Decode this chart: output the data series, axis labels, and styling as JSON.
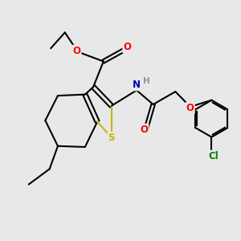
{
  "background_color": "#e8e8e8",
  "atom_colors": {
    "S": "#c8b400",
    "O": "#ff0000",
    "N": "#0000bb",
    "Cl": "#008000",
    "C": "#000000",
    "H": "#7a9a9a"
  },
  "figsize": [
    3.0,
    3.0
  ],
  "dpi": 100
}
